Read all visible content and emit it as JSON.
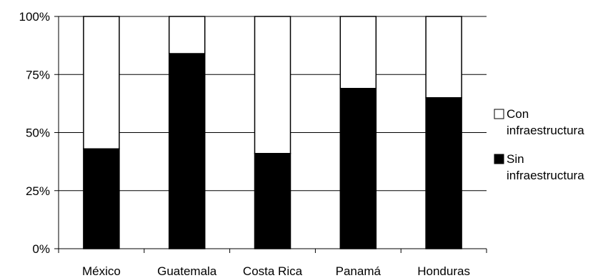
{
  "chart_data": {
    "type": "bar",
    "stacked": true,
    "percent_stacked": true,
    "categories": [
      "México",
      "Guatemala",
      "Costa Rica",
      "Panamá",
      "Honduras"
    ],
    "series": [
      {
        "name": "Sin infraestructura",
        "values": [
          43,
          84,
          41,
          69,
          65
        ],
        "color": "#000000"
      },
      {
        "name": "Con infraestructura",
        "values": [
          57,
          16,
          59,
          31,
          35
        ],
        "color": "#ffffff"
      }
    ],
    "ylim": [
      0,
      100
    ],
    "yticks": [
      "0%",
      "25%",
      "50%",
      "75%",
      "100%"
    ],
    "ytick_values": [
      0,
      25,
      50,
      75,
      100
    ],
    "grid": true,
    "legend": {
      "position": "right",
      "entries": [
        {
          "line1": "Con",
          "line2": "infraestructura",
          "color": "#ffffff"
        },
        {
          "line1": "Sin",
          "line2": "infraestructura",
          "color": "#000000"
        }
      ]
    }
  }
}
